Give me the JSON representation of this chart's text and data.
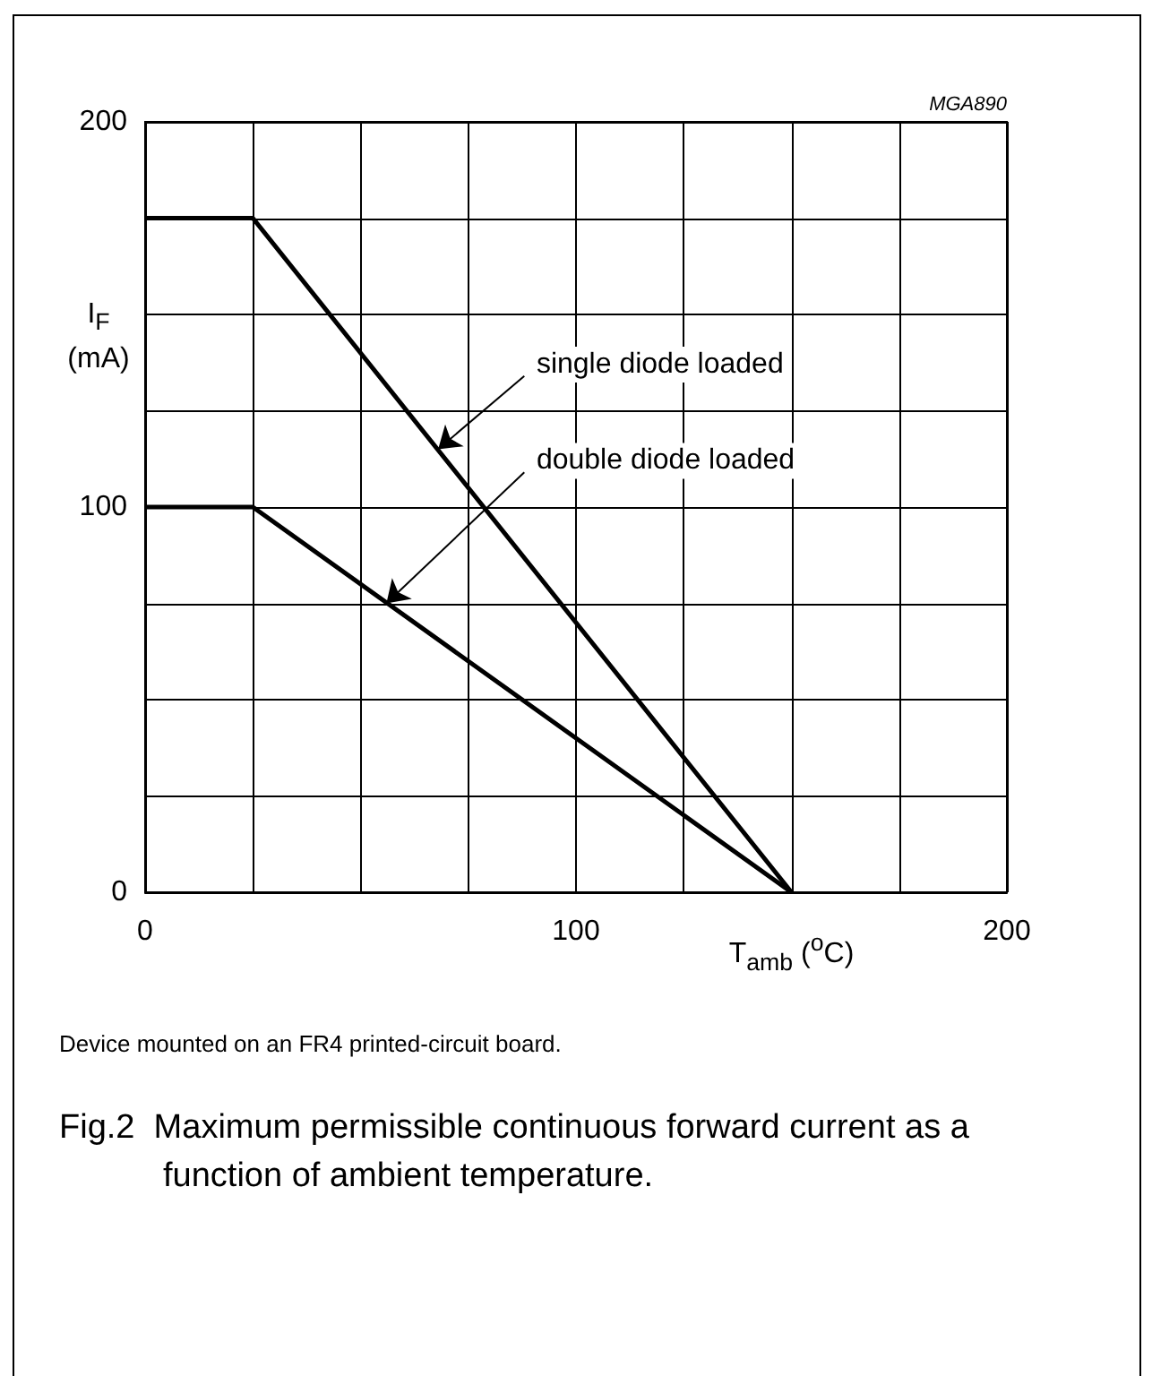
{
  "chart_data": {
    "type": "line",
    "title": "Fig.2  Maximum permissible continuous forward current as a function of ambient temperature.",
    "xlabel": "T$_{amb}$ ($^{o}$C)",
    "ylabel": "I$_{F}$ (mA)",
    "series": [
      {
        "x": [
          0,
          25,
          150
        ],
        "values": [
          175,
          175,
          0
        ],
        "color": "#000000"
      },
      {
        "x": [
          0,
          25,
          150
        ],
        "values": [
          100,
          100,
          0
        ],
        "color": "#000000"
      }
    ],
    "xlim": [
      0,
      200
    ],
    "ylim": [
      0,
      200
    ],
    "xticks": [
      0,
      {
        "value": 25,
        "label": null
      },
      {
        "value": 50,
        "label": null
      },
      {
        "value": 75,
        "label": null
      },
      100,
      {
        "value": 125,
        "label": null
      },
      {
        "value": 150,
        "label": null
      },
      {
        "value": 175,
        "label": null
      },
      200
    ],
    "yticks": [
      0,
      {
        "value": 25,
        "label": null
      },
      {
        "value": 50,
        "label": null
      },
      {
        "value": 75,
        "label": null
      },
      100,
      {
        "value": 125,
        "label": null
      },
      {
        "value": 150,
        "label": null
      },
      {
        "value": 175,
        "label": null
      },
      200
    ],
    "grid": true,
    "marker": "none",
    "line_style": "solid",
    "annotations": [
      {
        "text": "single diode loaded",
        "x": 68,
        "y": 115
      },
      {
        "text": "double diode loaded",
        "x": 56,
        "y": 75
      },
      "MGA890",
      "Device mounted on an FR4 printed-circuit board."
    ]
  }
}
